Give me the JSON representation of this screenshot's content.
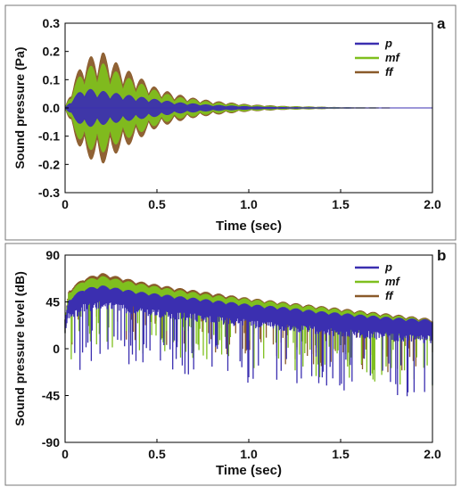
{
  "colors": {
    "p": "#3b2fb0",
    "mf": "#7fbf1e",
    "ff": "#8a5a2a"
  },
  "chart_data": [
    {
      "panel_label": "a",
      "type": "line",
      "xlabel": "Time (sec)",
      "ylabel": "Sound pressure (Pa)",
      "xlim": [
        0,
        2.0
      ],
      "ylim": [
        -0.3,
        0.3
      ],
      "xticks": [
        "0",
        "0.5",
        "1.0",
        "1.5",
        "2.0"
      ],
      "yticks": [
        "0.3",
        "0.2",
        "0.1",
        "0.0",
        "-0.1",
        "-0.2",
        "-0.3"
      ],
      "legend_position": "top-right",
      "series": [
        {
          "name": "p",
          "x": [
            0,
            0.05,
            0.1,
            0.2,
            0.3,
            0.4,
            0.5,
            0.6,
            0.7,
            0.8,
            1.0,
            1.2,
            1.5,
            2.0
          ],
          "values": [
            0,
            0.04,
            0.07,
            0.06,
            0.05,
            0.04,
            0.03,
            0.02,
            0.015,
            0.01,
            0.005,
            0.002,
            0.001,
            0
          ]
        },
        {
          "name": "mf",
          "x": [
            0,
            0.05,
            0.1,
            0.2,
            0.3,
            0.4,
            0.5,
            0.6,
            0.7,
            0.8,
            1.0,
            1.2,
            1.5,
            2.0
          ],
          "values": [
            0,
            0.08,
            0.14,
            0.16,
            0.12,
            0.09,
            0.06,
            0.04,
            0.03,
            0.02,
            0.01,
            0.005,
            0.002,
            0
          ]
        },
        {
          "name": "ff",
          "x": [
            0,
            0.05,
            0.1,
            0.2,
            0.3,
            0.4,
            0.5,
            0.6,
            0.7,
            0.8,
            1.0,
            1.2,
            1.5,
            2.0
          ],
          "values": [
            0,
            0.1,
            0.17,
            0.2,
            0.15,
            0.11,
            0.07,
            0.05,
            0.035,
            0.025,
            0.012,
            0.006,
            0.002,
            0
          ]
        }
      ]
    },
    {
      "panel_label": "b",
      "type": "line",
      "xlabel": "Time (sec)",
      "ylabel": "Sound pressure level (dB)",
      "xlim": [
        0,
        2.0
      ],
      "ylim": [
        -90,
        90
      ],
      "xticks": [
        "0",
        "0.5",
        "1.0",
        "1.5",
        "2.0"
      ],
      "yticks": [
        "90",
        "45",
        "0",
        "-45",
        "-90"
      ],
      "legend_position": "top-right",
      "series": [
        {
          "name": "p",
          "x": [
            0,
            0.02,
            0.1,
            0.2,
            0.4,
            0.6,
            0.8,
            1.0,
            1.2,
            1.4,
            1.6,
            1.8,
            2.0
          ],
          "values": [
            25,
            45,
            55,
            58,
            52,
            48,
            44,
            40,
            37,
            33,
            30,
            27,
            25
          ]
        },
        {
          "name": "mf",
          "x": [
            0,
            0.02,
            0.1,
            0.2,
            0.4,
            0.6,
            0.8,
            1.0,
            1.2,
            1.4,
            1.6,
            1.8,
            2.0
          ],
          "values": [
            25,
            52,
            63,
            67,
            60,
            54,
            49,
            45,
            41,
            37,
            33,
            29,
            25
          ]
        },
        {
          "name": "ff",
          "x": [
            0,
            0.02,
            0.1,
            0.2,
            0.4,
            0.6,
            0.8,
            1.0,
            1.2,
            1.4,
            1.6,
            1.8,
            2.0
          ],
          "values": [
            25,
            54,
            65,
            70,
            62,
            56,
            51,
            46,
            42,
            38,
            34,
            30,
            26
          ]
        }
      ]
    }
  ]
}
